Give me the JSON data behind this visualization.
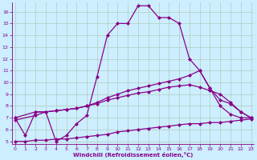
{
  "line1_x": [
    0,
    1,
    2,
    3,
    4,
    5,
    6,
    7,
    8,
    9,
    10,
    11,
    12,
    13,
    14,
    15,
    16,
    17,
    18,
    19,
    20,
    21,
    22,
    23
  ],
  "line1_y": [
    7.0,
    5.5,
    7.5,
    7.5,
    5.0,
    5.5,
    6.5,
    7.2,
    10.5,
    14.0,
    15.0,
    15.0,
    16.5,
    16.5,
    15.5,
    15.5,
    15.0,
    12.0,
    11.0,
    9.5,
    8.0,
    7.3,
    7.0,
    7.0
  ],
  "line2_x": [
    0,
    2,
    3,
    4,
    5,
    6,
    7,
    8,
    9,
    10,
    11,
    12,
    13,
    14,
    15,
    16,
    17,
    18,
    19,
    20,
    21,
    22,
    23
  ],
  "line2_y": [
    7.0,
    7.5,
    7.5,
    7.6,
    7.7,
    7.8,
    8.0,
    8.3,
    8.7,
    9.0,
    9.3,
    9.5,
    9.7,
    9.9,
    10.1,
    10.3,
    10.6,
    11.0,
    9.5,
    8.5,
    8.2,
    7.5,
    7.0
  ],
  "line3_x": [
    0,
    2,
    3,
    4,
    5,
    6,
    7,
    8,
    9,
    10,
    11,
    12,
    13,
    14,
    15,
    16,
    17,
    18,
    19,
    20,
    21,
    22,
    23
  ],
  "line3_y": [
    6.8,
    7.2,
    7.5,
    7.6,
    7.7,
    7.8,
    8.0,
    8.2,
    8.5,
    8.7,
    8.9,
    9.1,
    9.2,
    9.4,
    9.6,
    9.7,
    9.8,
    9.6,
    9.3,
    9.0,
    8.3,
    7.5,
    7.0
  ],
  "line4_x": [
    0,
    1,
    2,
    3,
    4,
    5,
    6,
    7,
    8,
    9,
    10,
    11,
    12,
    13,
    14,
    15,
    16,
    17,
    18,
    19,
    20,
    21,
    22,
    23
  ],
  "line4_y": [
    5.0,
    5.0,
    5.1,
    5.1,
    5.2,
    5.2,
    5.3,
    5.4,
    5.5,
    5.6,
    5.8,
    5.9,
    6.0,
    6.1,
    6.2,
    6.3,
    6.4,
    6.5,
    6.5,
    6.6,
    6.6,
    6.7,
    6.8,
    6.9
  ],
  "line_color": "#880088",
  "bg_color": "#cceeff",
  "grid_color": "#aaddcc",
  "xlabel": "Windchill (Refroidissement éolien,°C)",
  "ylim": [
    4.8,
    16.8
  ],
  "xlim": [
    -0.3,
    23.3
  ],
  "yticks": [
    5,
    6,
    7,
    8,
    9,
    10,
    11,
    12,
    13,
    14,
    15,
    16
  ],
  "xticks": [
    0,
    1,
    2,
    3,
    4,
    5,
    6,
    7,
    8,
    9,
    10,
    11,
    12,
    13,
    14,
    15,
    16,
    17,
    18,
    19,
    20,
    21,
    22,
    23
  ],
  "marker": "D",
  "markersize": 2,
  "linewidth": 0.9
}
